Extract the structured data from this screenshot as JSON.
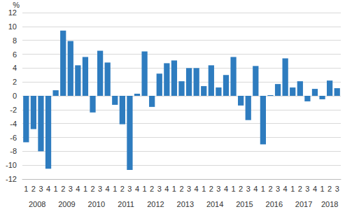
{
  "chart_data": {
    "type": "bar",
    "y_label": "%",
    "categories": [
      "1",
      "2",
      "3",
      "4",
      "1",
      "2",
      "3",
      "4",
      "1",
      "2",
      "3",
      "4",
      "1",
      "2",
      "3",
      "4",
      "1",
      "2",
      "3",
      "4",
      "1",
      "2",
      "3",
      "4",
      "1",
      "2",
      "3",
      "4",
      "1",
      "2",
      "3",
      "4",
      "1",
      "2",
      "3",
      "4",
      "1",
      "2",
      "3",
      "4",
      "1",
      "2",
      "3"
    ],
    "year_labels": [
      "2008",
      "2009",
      "2010",
      "2011",
      "2012",
      "2013",
      "2014",
      "2015",
      "2016",
      "2017",
      "2018"
    ],
    "values": [
      -6.7,
      -4.8,
      -8.0,
      -10.5,
      0.8,
      9.4,
      7.9,
      4.4,
      5.6,
      -2.4,
      6.5,
      4.8,
      -1.3,
      -4.1,
      -10.7,
      0.3,
      6.4,
      -1.6,
      3.2,
      4.7,
      5.1,
      2.1,
      4.0,
      4.0,
      1.4,
      4.4,
      1.2,
      3.0,
      5.6,
      -1.4,
      -3.5,
      4.3,
      -7.0,
      0.1,
      1.7,
      5.4,
      1.2,
      2.1,
      -0.8,
      1.0,
      -0.5,
      2.2,
      1.1
    ],
    "color": "#2e7cbf",
    "ylim": [
      -12,
      12
    ],
    "yticks": [
      -12,
      -10,
      -8,
      -6,
      -4,
      -2,
      0,
      2,
      4,
      6,
      8,
      10,
      12
    ],
    "grid": true
  }
}
